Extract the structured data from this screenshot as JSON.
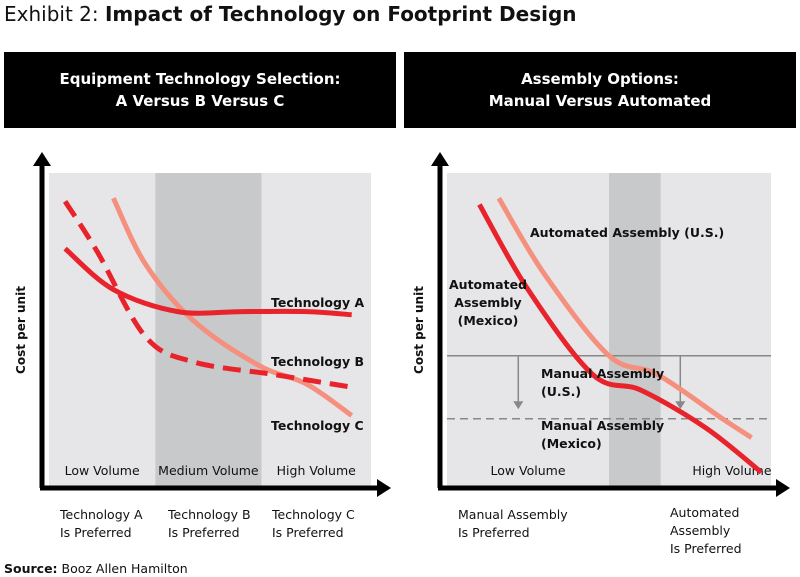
{
  "title": {
    "prefix": "Exhibit 2: ",
    "main": "Impact of Technology on Footprint Design"
  },
  "panels": [
    {
      "header": {
        "line1": "Equipment Technology Selection:",
        "line2": "A Versus B Versus C"
      }
    },
    {
      "header": {
        "line1": "Assembly Options:",
        "line2": "Manual Versus Automated"
      }
    }
  ],
  "preferred_left": [
    {
      "line1": "Technology A",
      "line2": "Is Preferred"
    },
    {
      "line1": "Technology B",
      "line2": "Is Preferred"
    },
    {
      "line1": "Technology C",
      "line2": "Is Preferred"
    }
  ],
  "preferred_right": [
    {
      "line1": "Manual Assembly",
      "line2": "Is Preferred",
      "line3": ""
    },
    {
      "line1": "Automated",
      "line2": "Assembly",
      "line3": "Is Preferred"
    }
  ],
  "source": {
    "label": "Source:",
    "text": " Booz Allen Hamilton"
  },
  "colors": {
    "red": "#e8232b",
    "salmon": "#f4907d",
    "band_light": "#e6e6e8",
    "band_dark": "#c8c9cb",
    "line_gray": "#888888"
  },
  "chart_data": [
    {
      "type": "line",
      "ylabel": "Cost per unit",
      "xlabel": "",
      "xlim": [
        0,
        100
      ],
      "ylim": [
        0,
        100
      ],
      "regions": [
        {
          "label": "Low Volume",
          "from": 0,
          "to": 33,
          "shade": "light"
        },
        {
          "label": "Medium Volume",
          "from": 33,
          "to": 66,
          "shade": "dark"
        },
        {
          "label": "High Volume",
          "from": 66,
          "to": 100,
          "shade": "light"
        }
      ],
      "series": [
        {
          "name": "Technology A",
          "color": "#e8232b",
          "dash": false,
          "x": [
            5,
            20,
            40,
            60,
            80,
            94
          ],
          "y": [
            76,
            63,
            56,
            56,
            56,
            55
          ]
        },
        {
          "name": "Technology B",
          "color": "#e8232b",
          "dash": true,
          "x": [
            5,
            15,
            30,
            45,
            70,
            94
          ],
          "y": [
            91,
            75,
            48,
            40,
            36,
            32
          ]
        },
        {
          "name": "Technology C",
          "color": "#f4907d",
          "dash": false,
          "x": [
            20,
            30,
            45,
            65,
            80,
            94
          ],
          "y": [
            92,
            71,
            53,
            39,
            33,
            23
          ]
        }
      ],
      "series_labels": [
        "Technology A",
        "Technology B",
        "Technology C"
      ]
    },
    {
      "type": "line",
      "ylabel": "Cost per unit",
      "xlabel": "",
      "xlim": [
        0,
        100
      ],
      "ylim": [
        0,
        100
      ],
      "regions": [
        {
          "label": "Low Volume",
          "from": 0,
          "to": 50,
          "shade": "light"
        },
        {
          "label": "",
          "from": 50,
          "to": 66,
          "shade": "dark"
        },
        {
          "label": "High Volume",
          "from": 66,
          "to": 100,
          "shade": "light"
        }
      ],
      "series": [
        {
          "name": "Automated Assembly (Mexico)",
          "color": "#e8232b",
          "dash": false,
          "x": [
            10,
            25,
            45,
            60,
            80,
            97
          ],
          "y": [
            90,
            63,
            36,
            31,
            19,
            5
          ]
        },
        {
          "name": "Automated Assembly (U.S.)",
          "color": "#f4907d",
          "dash": false,
          "x": [
            16,
            30,
            50,
            65,
            85,
            94
          ],
          "y": [
            92,
            68,
            42,
            36,
            22,
            16
          ]
        }
      ],
      "hlines": [
        {
          "name": "Manual Assembly (U.S.)",
          "y": 42,
          "dash": false,
          "color": "#888888"
        },
        {
          "name": "Manual Assembly (Mexico)",
          "y": 22,
          "dash": true,
          "color": "#888888"
        }
      ],
      "arrows": [
        {
          "x": 22,
          "from": 42,
          "to": 25
        },
        {
          "x": 72,
          "from": 42,
          "to": 25
        }
      ],
      "series_labels": {
        "automated_us": "Automated Assembly (U.S.)",
        "automated_mexico": [
          "Automated",
          "Assembly",
          "(Mexico)"
        ],
        "manual_us": [
          "Manual Assembly",
          "(U.S.)"
        ],
        "manual_mexico": [
          "Manual Assembly",
          "(Mexico)"
        ]
      }
    }
  ]
}
